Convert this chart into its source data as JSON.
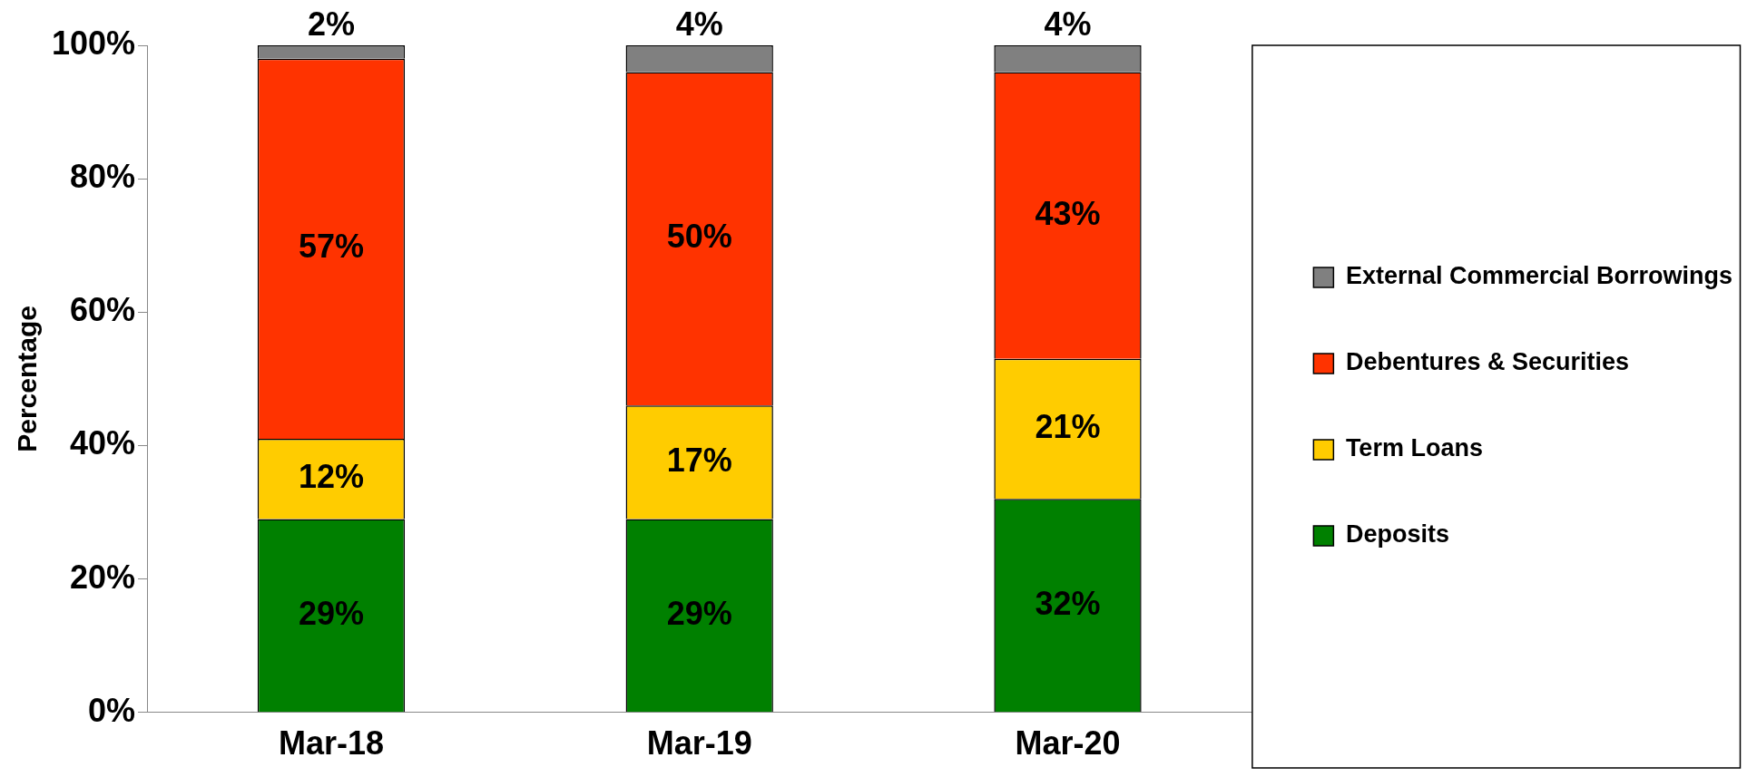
{
  "chart_data": {
    "type": "bar",
    "stacked": true,
    "ylabel": "Percentage",
    "categories": [
      "Mar-18",
      "Mar-19",
      "Mar-20"
    ],
    "series": [
      {
        "name": "Deposits",
        "color": "#008000",
        "values": [
          29,
          29,
          32
        ],
        "value_labels": [
          "29%",
          "29%",
          "32%"
        ]
      },
      {
        "name": "Term Loans",
        "color": "#ffcc00",
        "values": [
          12,
          17,
          21
        ],
        "value_labels": [
          "12%",
          "17%",
          "21%"
        ]
      },
      {
        "name": "Debentures & Securities",
        "color": "#ff3300",
        "values": [
          57,
          50,
          43
        ],
        "value_labels": [
          "57%",
          "50%",
          "43%"
        ]
      },
      {
        "name": "External Commercial Borrowings",
        "color": "#808080",
        "values": [
          2,
          4,
          4
        ],
        "value_labels": [
          "2%",
          "4%",
          "4%"
        ]
      }
    ],
    "ylim": [
      0,
      100
    ],
    "yticks": [
      {
        "value": 0,
        "label": "0%"
      },
      {
        "value": 20,
        "label": "20%"
      },
      {
        "value": 40,
        "label": "40%"
      },
      {
        "value": 60,
        "label": "60%"
      },
      {
        "value": 80,
        "label": "80%"
      },
      {
        "value": 100,
        "label": "100%"
      }
    ],
    "grid": false,
    "legend": "right"
  }
}
